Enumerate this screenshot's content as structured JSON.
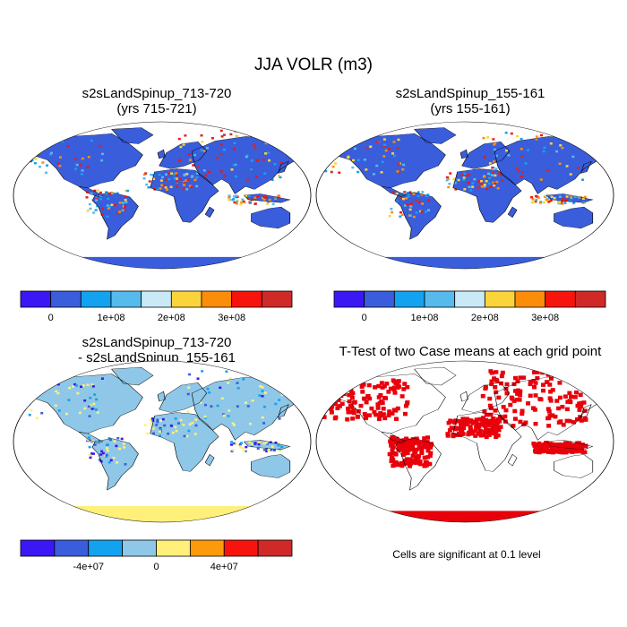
{
  "title": "JJA VOLR (m3)",
  "panels": [
    {
      "title": "s2sLandSpinup_713-720\n(yrs 715-721)"
    },
    {
      "title": "s2sLandSpinup_155-161\n(yrs 155-161)"
    },
    {
      "title": "s2sLandSpinup_713-720\n- s2sLandSpinup_155-161"
    },
    {
      "title": "T-Test of two Case means at each grid point"
    }
  ],
  "colorbar_top": {
    "colors": [
      "#3b17f5",
      "#3a5ddb",
      "#12a2ef",
      "#56bbec",
      "#c8e9f5",
      "#fbd43b",
      "#fb8d0b",
      "#f7140d",
      "#cf2a27"
    ],
    "labels": [
      "0",
      "1e+08",
      "2e+08",
      "3e+08"
    ]
  },
  "colorbar_bottom": {
    "colors": [
      "#3b17f5",
      "#3a5ddb",
      "#12a2ef",
      "#8fc7e8",
      "#fef07a",
      "#fb9b0b",
      "#f7140d",
      "#cf2a27"
    ],
    "labels": [
      "-4e+07",
      "0",
      "4e+07"
    ]
  },
  "significance_note": "Cells are significant at 0.1 level",
  "map_colors": {
    "ocean": "#ffffff",
    "land_mean": "#3a5ddb",
    "land_diff": "#8fc7e8",
    "significant": "#e8000b",
    "coast": "#000000"
  }
}
